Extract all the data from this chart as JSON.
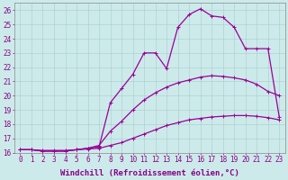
{
  "xlabel": "Windchill (Refroidissement éolien,°C)",
  "xlim": [
    -0.5,
    23.5
  ],
  "ylim": [
    16,
    26.5
  ],
  "ytick_vals": [
    16,
    17,
    18,
    19,
    20,
    21,
    22,
    23,
    24,
    25,
    26
  ],
  "background_color": "#cdeaea",
  "line_color": "#990099",
  "curve1_x": [
    0,
    1,
    2,
    3,
    4,
    5,
    6,
    7,
    8,
    9,
    10,
    11,
    12,
    13,
    14,
    15,
    16,
    17,
    18,
    19,
    20,
    21,
    22,
    23
  ],
  "curve1_y": [
    16.2,
    16.2,
    16.15,
    16.15,
    16.15,
    16.2,
    16.25,
    16.3,
    16.5,
    16.7,
    17.0,
    17.3,
    17.6,
    17.9,
    18.1,
    18.3,
    18.4,
    18.5,
    18.55,
    18.6,
    18.6,
    18.55,
    18.45,
    18.3
  ],
  "curve2_x": [
    0,
    1,
    2,
    3,
    4,
    5,
    6,
    7,
    8,
    9,
    10,
    11,
    12,
    13,
    14,
    15,
    16,
    17,
    18,
    19,
    20,
    21,
    22,
    23
  ],
  "curve2_y": [
    16.2,
    16.2,
    16.1,
    16.1,
    16.1,
    16.2,
    16.3,
    16.5,
    17.5,
    18.2,
    19.0,
    19.7,
    20.2,
    20.6,
    20.9,
    21.1,
    21.3,
    21.4,
    21.35,
    21.25,
    21.1,
    20.8,
    20.3,
    20.0
  ],
  "curve3_x": [
    0,
    1,
    2,
    3,
    4,
    5,
    6,
    7,
    8,
    9,
    10,
    11,
    12,
    13,
    14,
    15,
    16,
    17,
    18,
    19,
    20,
    21,
    22,
    23
  ],
  "curve3_y": [
    16.2,
    16.2,
    16.1,
    16.1,
    16.1,
    16.2,
    16.3,
    16.4,
    19.5,
    20.5,
    21.5,
    23.0,
    23.0,
    21.9,
    24.8,
    25.7,
    26.1,
    25.6,
    25.5,
    24.8,
    23.3,
    23.3,
    23.3,
    18.5
  ],
  "marker": "+",
  "marker_size": 3,
  "line_width": 0.9,
  "grid_color": "#a8cccc",
  "font_color": "#880088",
  "tick_fontsize": 5.5,
  "xlabel_fontsize": 6.5
}
